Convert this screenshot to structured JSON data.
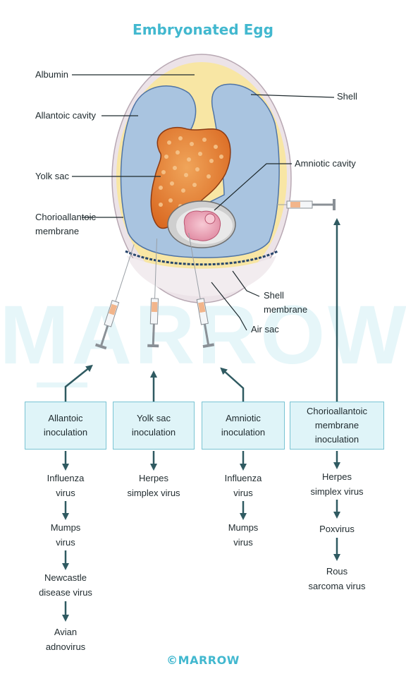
{
  "title": "Embryonated Egg",
  "watermark": "MARROW",
  "footer": "©MARROW",
  "colors": {
    "accent": "#42b8cf",
    "box_fill": "#dff4f8",
    "arrow": "#2f5a61",
    "albumin": "#f8e6a4",
    "cavity": "#a9c4e0",
    "yolk": "#e07a2e"
  },
  "labels": {
    "albumin": "Albumin",
    "allantoic_cavity": "Allantoic cavity",
    "yolk_sac": "Yolk sac",
    "chorioallantoic": [
      "Chorioallantoic",
      "membrane"
    ],
    "shell": "Shell",
    "amniotic_cavity": "Amniotic cavity",
    "shell_membrane": [
      "Shell",
      "membrane"
    ],
    "air_sac": "Air sac"
  },
  "routes": [
    {
      "box": [
        "Allantoic",
        "inoculation"
      ],
      "viruses": [
        [
          "Influenza",
          "virus"
        ],
        [
          "Mumps",
          "virus"
        ],
        [
          "Newcastle",
          "disease virus"
        ],
        [
          "Avian",
          "adnovirus"
        ]
      ]
    },
    {
      "box": [
        "Yolk sac",
        "inoculation"
      ],
      "viruses": [
        [
          "Herpes",
          "simplex virus"
        ]
      ]
    },
    {
      "box": [
        "Amniotic",
        "inoculation"
      ],
      "viruses": [
        [
          "Influenza",
          "virus"
        ],
        [
          "Mumps",
          "virus"
        ]
      ]
    },
    {
      "box": [
        "Chorioallantoic",
        "membrane",
        "inoculation"
      ],
      "viruses": [
        [
          "Herpes",
          "simplex virus"
        ],
        [
          "Poxvirus"
        ],
        [
          "Rous",
          "sarcoma virus"
        ]
      ]
    }
  ]
}
